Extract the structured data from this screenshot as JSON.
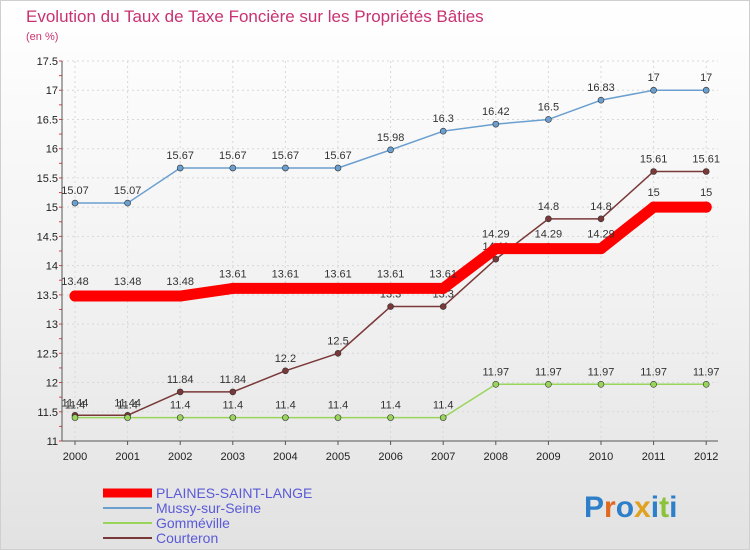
{
  "title": "Evolution du Taux de Taxe Foncière sur les Propriétés Bâties",
  "subtitle": "(en %)",
  "brand": "Proxiti",
  "chart_data": {
    "type": "line",
    "title": "Evolution du Taux de Taxe Foncière sur les Propriétés Bâties",
    "ylabel": "(en %)",
    "xlabel": "",
    "ylim": [
      11,
      17.5
    ],
    "yticks": [
      11,
      11.5,
      12,
      12.5,
      13,
      13.5,
      14,
      14.5,
      15,
      15.5,
      16,
      16.5,
      17,
      17.5
    ],
    "ytick_labels": [
      "11",
      "11.5",
      "12",
      "12.5",
      "13",
      "13.5",
      "14",
      "14.5",
      "15",
      "15.5",
      "16",
      "16.5",
      "17",
      "17.5"
    ],
    "x": [
      "2000",
      "2001",
      "2002",
      "2003",
      "2004",
      "2005",
      "2006",
      "2007",
      "2008",
      "2009",
      "2010",
      "2011",
      "2012"
    ],
    "grid": true,
    "legend_position": "bottom-left",
    "series": [
      {
        "name": "PLAINES-SAINT-LANGE",
        "color": "#ff0000",
        "values": [
          13.48,
          13.48,
          13.48,
          13.61,
          13.61,
          13.61,
          13.61,
          13.61,
          14.29,
          14.29,
          14.29,
          15,
          15
        ],
        "labels": [
          "13.48",
          "13.48",
          "13.48",
          "13.61",
          "13.61",
          "13.61",
          "13.61",
          "13.61",
          "14.29",
          "14.29",
          "14.29",
          "15",
          "15"
        ]
      },
      {
        "name": "Mussy-sur-Seine",
        "color": "#6a9fd0",
        "values": [
          15.07,
          15.07,
          15.67,
          15.67,
          15.67,
          15.67,
          15.98,
          16.3,
          16.42,
          16.5,
          16.83,
          17,
          17
        ],
        "labels": [
          "15.07",
          "15.07",
          "15.67",
          "15.67",
          "15.67",
          "15.67",
          "15.98",
          "16.3",
          "16.42",
          "16.5",
          "16.83",
          "17",
          "17"
        ]
      },
      {
        "name": "Gomméville",
        "color": "#99d55a",
        "values": [
          11.4,
          11.4,
          11.4,
          11.4,
          11.4,
          11.4,
          11.4,
          11.4,
          11.97,
          11.97,
          11.97,
          11.97,
          11.97
        ],
        "labels": [
          "11.4",
          "11.4",
          "11.4",
          "11.4",
          "11.4",
          "11.4",
          "11.4",
          "11.4",
          "11.97",
          "11.97",
          "11.97",
          "11.97",
          "11.97"
        ]
      },
      {
        "name": "Courteron",
        "color": "#7a3838",
        "values": [
          11.44,
          11.44,
          11.84,
          11.84,
          12.2,
          12.5,
          13.3,
          13.3,
          14.11,
          14.8,
          14.8,
          15.61,
          15.61
        ],
        "labels": [
          "11.44",
          "11.44",
          "11.84",
          "11.84",
          "12.2",
          "12.5",
          "13.3",
          "13.3",
          "14.11",
          "14.8",
          "14.8",
          "15.61",
          "15.61"
        ]
      }
    ]
  }
}
